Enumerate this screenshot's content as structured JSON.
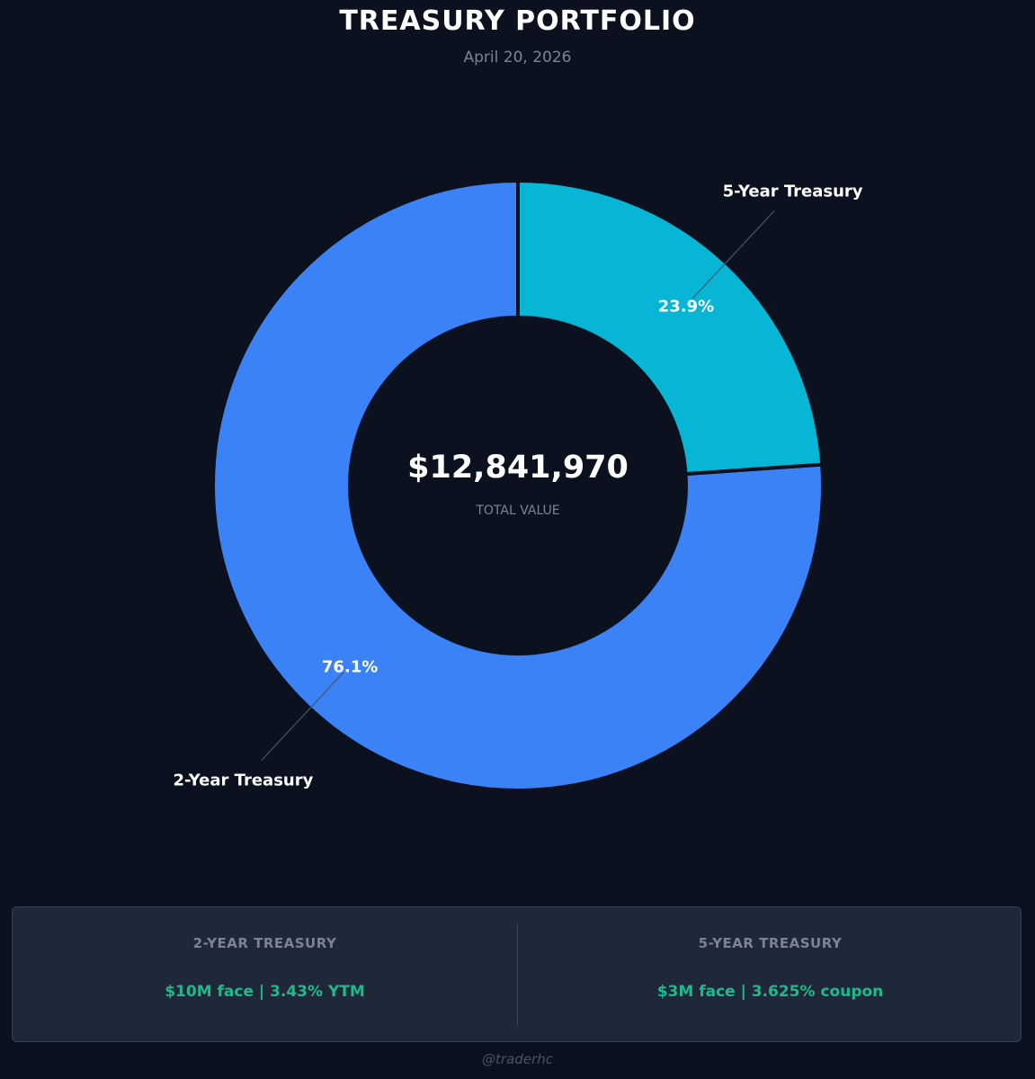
{
  "header": {
    "title": "TREASURY PORTFOLIO",
    "date": "April 20, 2026"
  },
  "chart_data": {
    "type": "pie",
    "variant": "donut",
    "categories": [
      "2-Year Treasury",
      "5-Year Treasury"
    ],
    "values": [
      76.1,
      23.9
    ],
    "value_labels": [
      "76.1%",
      "23.9%"
    ],
    "colors": [
      "#3b82f6",
      "#06b6d4"
    ],
    "center_value": "$12,841,970",
    "center_label": "TOTAL VALUE"
  },
  "summary": {
    "items": [
      {
        "label": "2-YEAR TREASURY",
        "value": "$10M face | 3.43% YTM"
      },
      {
        "label": "5-YEAR TREASURY",
        "value": "$3M face | 3.625% coupon"
      }
    ]
  },
  "footer": {
    "handle": "@traderhc"
  },
  "theme": {
    "background": "#0c1120",
    "accent_text": "#1fb98b"
  }
}
